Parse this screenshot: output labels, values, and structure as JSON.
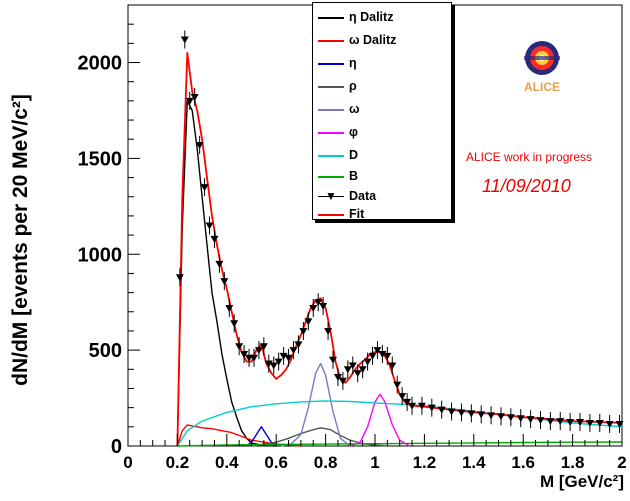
{
  "chart_data": {
    "type": "line",
    "xlabel": "M [GeV/c²]",
    "ylabel": "dN/dM [events per 20 MeV/c²]",
    "xlim": [
      0,
      2
    ],
    "ylim": [
      0,
      2300
    ],
    "x_ticks": [
      "0",
      "0.2",
      "0.4",
      "0.6",
      "0.8",
      "1",
      "1.2",
      "1.4",
      "1.6",
      "1.8",
      "2"
    ],
    "y_ticks": [
      "0",
      "500",
      "1000",
      "1500",
      "2000"
    ],
    "grid": false,
    "legend_placement": "top-center",
    "series": [
      {
        "name": "η Dalitz",
        "style": "line",
        "color": "#000000",
        "x": [
          0.2,
          0.22,
          0.24,
          0.26,
          0.28,
          0.3,
          0.32,
          0.34,
          0.36,
          0.38,
          0.4,
          0.42,
          0.44,
          0.46,
          0.48,
          0.5,
          0.55,
          0.6
        ],
        "y": [
          0,
          1150,
          1800,
          1750,
          1550,
          1300,
          1050,
          800,
          650,
          480,
          350,
          230,
          150,
          80,
          40,
          15,
          3,
          0
        ]
      },
      {
        "name": "ω Dalitz",
        "style": "line",
        "color": "#ff0000",
        "x": [
          0.2,
          0.22,
          0.24,
          0.26,
          0.28,
          0.3,
          0.34,
          0.38,
          0.42,
          0.46,
          0.5,
          0.55,
          0.6,
          0.65,
          0.7
        ],
        "y": [
          0,
          80,
          110,
          105,
          100,
          95,
          90,
          80,
          70,
          50,
          30,
          20,
          10,
          5,
          0
        ]
      },
      {
        "name": "η",
        "style": "line",
        "color": "#0000cc",
        "x": [
          0.48,
          0.5,
          0.52,
          0.54,
          0.56,
          0.58,
          0.6
        ],
        "y": [
          0,
          20,
          60,
          100,
          60,
          20,
          0
        ]
      },
      {
        "name": "ρ",
        "style": "line",
        "color": "#555555",
        "x": [
          0.5,
          0.55,
          0.6,
          0.65,
          0.7,
          0.75,
          0.78,
          0.82,
          0.86,
          0.9,
          0.95,
          1.0,
          1.05
        ],
        "y": [
          0,
          10,
          20,
          40,
          65,
          85,
          95,
          85,
          55,
          30,
          12,
          5,
          0
        ]
      },
      {
        "name": "ω",
        "style": "line",
        "color": "#7777cc",
        "x": [
          0.62,
          0.66,
          0.7,
          0.73,
          0.76,
          0.78,
          0.8,
          0.83,
          0.86,
          0.9
        ],
        "y": [
          0,
          10,
          60,
          200,
          380,
          430,
          370,
          180,
          40,
          0
        ]
      },
      {
        "name": "φ",
        "style": "line",
        "color": "#ff00ff",
        "x": [
          0.9,
          0.94,
          0.97,
          1.0,
          1.02,
          1.04,
          1.07,
          1.1,
          1.14
        ],
        "y": [
          0,
          20,
          100,
          230,
          270,
          230,
          110,
          30,
          0
        ]
      },
      {
        "name": "D",
        "style": "line",
        "color": "#00cccc",
        "x": [
          0.2,
          0.24,
          0.3,
          0.4,
          0.5,
          0.6,
          0.7,
          0.8,
          0.9,
          1.0,
          1.1,
          1.2,
          1.4,
          1.6,
          1.8,
          2.0
        ],
        "y": [
          0,
          80,
          130,
          175,
          205,
          220,
          230,
          235,
          232,
          225,
          218,
          210,
          180,
          150,
          120,
          100
        ]
      },
      {
        "name": "B",
        "style": "line",
        "color": "#00aa00",
        "x": [
          0.2,
          0.4,
          0.6,
          0.8,
          1.0,
          1.2,
          1.4,
          1.6,
          1.8,
          2.0
        ],
        "y": [
          0,
          5,
          8,
          10,
          12,
          14,
          16,
          18,
          20,
          21
        ]
      },
      {
        "name": "Data",
        "style": "markers",
        "color": "#000000",
        "x": [
          0.21,
          0.23,
          0.25,
          0.27,
          0.29,
          0.31,
          0.33,
          0.35,
          0.37,
          0.39,
          0.41,
          0.43,
          0.45,
          0.47,
          0.49,
          0.51,
          0.53,
          0.55,
          0.57,
          0.59,
          0.61,
          0.63,
          0.65,
          0.67,
          0.69,
          0.71,
          0.73,
          0.75,
          0.77,
          0.79,
          0.81,
          0.83,
          0.85,
          0.87,
          0.89,
          0.91,
          0.93,
          0.95,
          0.97,
          0.99,
          1.01,
          1.03,
          1.05,
          1.07,
          1.09,
          1.11,
          1.13,
          1.15,
          1.19,
          1.23,
          1.27,
          1.31,
          1.35,
          1.39,
          1.43,
          1.47,
          1.51,
          1.55,
          1.59,
          1.63,
          1.67,
          1.71,
          1.75,
          1.79,
          1.83,
          1.87,
          1.91,
          1.95,
          1.99
        ],
        "y": [
          880,
          2120,
          1800,
          1820,
          1570,
          1350,
          1150,
          1080,
          950,
          860,
          720,
          640,
          520,
          480,
          460,
          460,
          500,
          520,
          430,
          420,
          440,
          470,
          460,
          500,
          530,
          600,
          650,
          720,
          750,
          730,
          600,
          450,
          360,
          340,
          400,
          420,
          380,
          400,
          440,
          470,
          500,
          480,
          470,
          420,
          320,
          260,
          230,
          210,
          210,
          200,
          190,
          180,
          175,
          170,
          165,
          160,
          155,
          150,
          145,
          140,
          135,
          130,
          130,
          125,
          125,
          120,
          120,
          115,
          115
        ]
      },
      {
        "name": "Fit",
        "style": "line",
        "color": "#ff0000",
        "x": [
          0.2,
          0.22,
          0.24,
          0.26,
          0.28,
          0.3,
          0.32,
          0.34,
          0.36,
          0.38,
          0.4,
          0.42,
          0.44,
          0.46,
          0.48,
          0.5,
          0.52,
          0.54,
          0.56,
          0.58,
          0.6,
          0.62,
          0.64,
          0.66,
          0.68,
          0.7,
          0.72,
          0.74,
          0.76,
          0.78,
          0.8,
          0.82,
          0.84,
          0.86,
          0.88,
          0.9,
          0.92,
          0.94,
          0.96,
          0.98,
          1.0,
          1.02,
          1.04,
          1.06,
          1.08,
          1.1,
          1.12,
          1.14,
          1.16,
          1.2,
          1.3,
          1.4,
          1.5,
          1.6,
          1.7,
          1.8,
          1.9,
          2.0
        ],
        "y": [
          0,
          1300,
          2050,
          1850,
          1750,
          1600,
          1400,
          1200,
          1050,
          920,
          820,
          700,
          580,
          490,
          440,
          440,
          500,
          530,
          430,
          380,
          350,
          370,
          400,
          450,
          520,
          580,
          650,
          720,
          760,
          770,
          720,
          600,
          440,
          350,
          330,
          360,
          400,
          430,
          450,
          480,
          490,
          490,
          470,
          420,
          340,
          270,
          230,
          215,
          210,
          205,
          190,
          175,
          165,
          150,
          140,
          130,
          125,
          120
        ]
      }
    ]
  },
  "annotations": {
    "work_in_progress": "ALICE work in progress",
    "date": "11/09/2010",
    "logo_text": "ALICE"
  }
}
